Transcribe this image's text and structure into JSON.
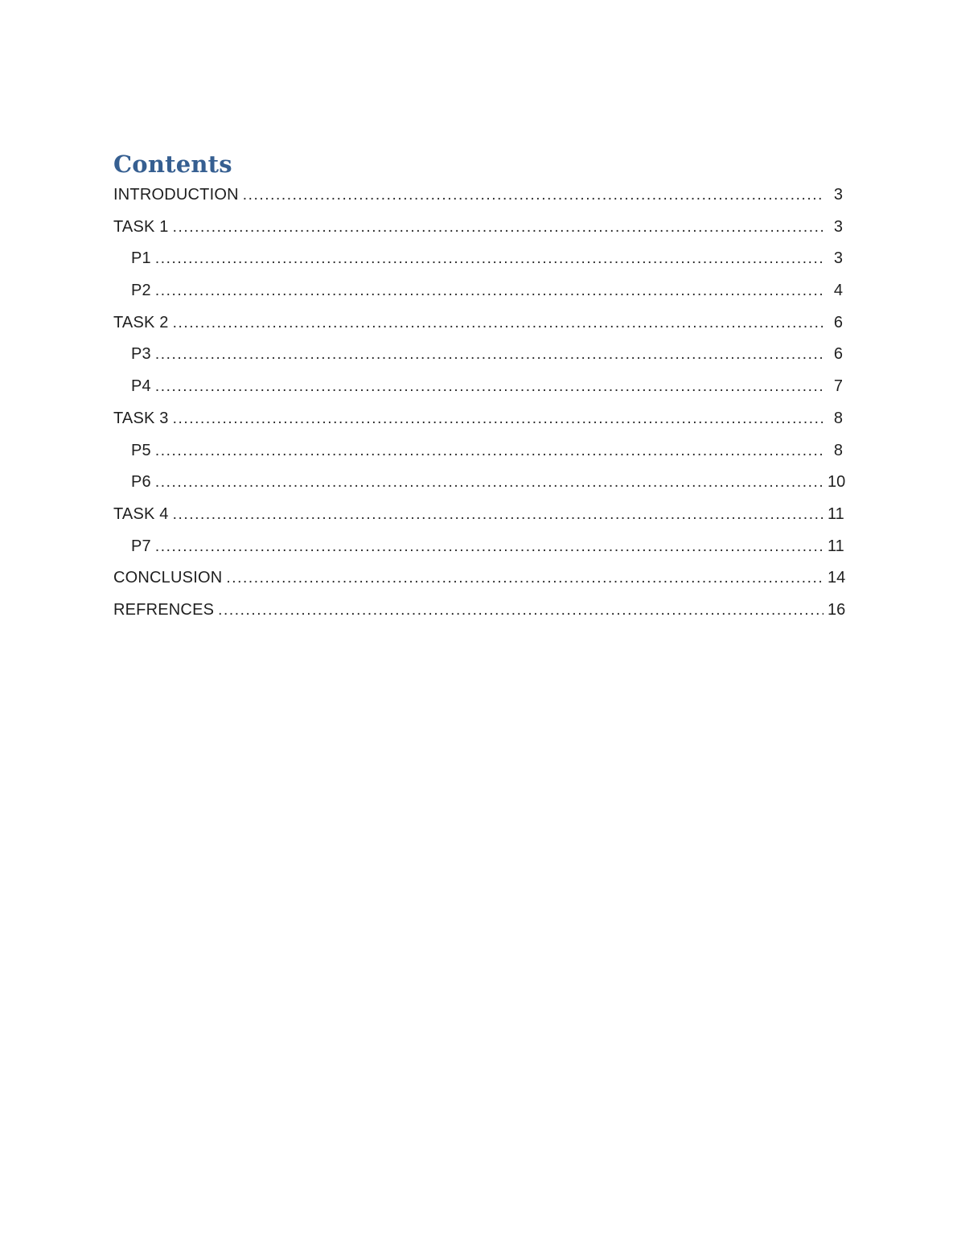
{
  "document": {
    "heading": "Contents",
    "heading_color": "#365F91",
    "text_color": "#1f1f1f"
  },
  "toc": {
    "entries": [
      {
        "label": "INTRODUCTION",
        "page": "3",
        "level": 1
      },
      {
        "label": "TASK 1",
        "page": "3",
        "level": 1
      },
      {
        "label": "P1",
        "page": "3",
        "level": 2
      },
      {
        "label": "P2",
        "page": "4",
        "level": 2
      },
      {
        "label": "TASK 2",
        "page": "6",
        "level": 1
      },
      {
        "label": "P3",
        "page": "6",
        "level": 2
      },
      {
        "label": "P4",
        "page": "7",
        "level": 2
      },
      {
        "label": "TASK 3",
        "page": "8",
        "level": 1
      },
      {
        "label": "P5",
        "page": "8",
        "level": 2
      },
      {
        "label": "P6",
        "page": "10",
        "level": 2
      },
      {
        "label": "TASK 4",
        "page": "11",
        "level": 1
      },
      {
        "label": "P7",
        "page": "11",
        "level": 2
      },
      {
        "label": "CONCLUSION",
        "page": "14",
        "level": 1
      },
      {
        "label": "REFRENCES",
        "page": "16",
        "level": 1
      }
    ]
  }
}
